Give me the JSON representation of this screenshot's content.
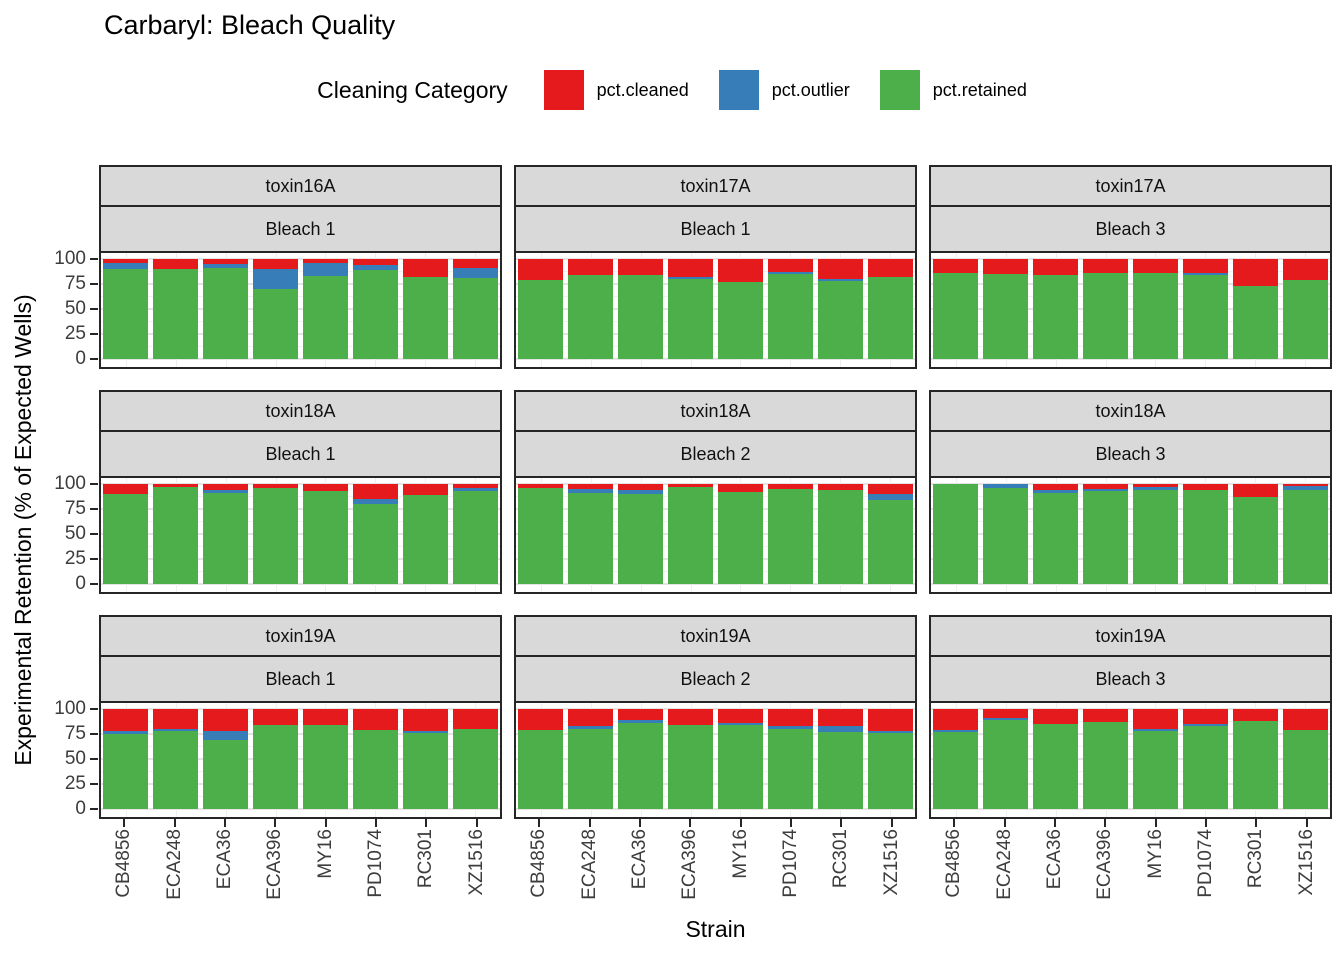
{
  "title": "Carbaryl: Bleach Quality",
  "legend": {
    "title": "Cleaning Category",
    "items": [
      {
        "label": "pct.cleaned",
        "color": "#E41A1C"
      },
      {
        "label": "pct.outlier",
        "color": "#377EB8"
      },
      {
        "label": "pct.retained",
        "color": "#4DAF4A"
      }
    ]
  },
  "chart_data": {
    "type": "bar",
    "stacked": true,
    "title": "Carbaryl: Bleach Quality",
    "xlabel": "Strain",
    "ylabel": "Experimental Retention (% of Expected Wells)",
    "categories": [
      "CB4856",
      "ECA248",
      "ECA36",
      "ECA396",
      "MY16",
      "PD1074",
      "RC301",
      "XZ1516"
    ],
    "ylim": [
      0,
      100
    ],
    "y_ticks_top_to_bottom": [
      100,
      75,
      50,
      25,
      0
    ],
    "y_minor_gridlines": [
      12.5,
      37.5,
      62.5,
      87.5
    ],
    "stack_order_bottom_to_top": [
      "pct.retained",
      "pct.outlier",
      "pct.cleaned"
    ],
    "colors": {
      "pct.cleaned": "#E41A1C",
      "pct.outlier": "#377EB8",
      "pct.retained": "#4DAF4A"
    },
    "legend_position": "top",
    "grid": true,
    "facet_layout": {
      "rows": 3,
      "cols": 3,
      "strip_levels": [
        "toxin",
        "bleach"
      ]
    },
    "facets": [
      {
        "row": 0,
        "col": 0,
        "toxin": "toxin16A",
        "bleach": "Bleach 1",
        "series": {
          "pct.retained": [
            90,
            90,
            91,
            70,
            83,
            89,
            82,
            81
          ],
          "pct.outlier": [
            6,
            0,
            4,
            20,
            13,
            5,
            0,
            10
          ],
          "pct.cleaned": [
            4,
            10,
            5,
            10,
            4,
            6,
            18,
            9
          ]
        }
      },
      {
        "row": 0,
        "col": 1,
        "toxin": "toxin17A",
        "bleach": "Bleach 1",
        "series": {
          "pct.retained": [
            79,
            84,
            84,
            80,
            77,
            85,
            78,
            82
          ],
          "pct.outlier": [
            0,
            0,
            0,
            2,
            0,
            2,
            2,
            0
          ],
          "pct.cleaned": [
            21,
            16,
            16,
            18,
            23,
            13,
            20,
            18
          ]
        }
      },
      {
        "row": 0,
        "col": 2,
        "toxin": "toxin17A",
        "bleach": "Bleach 3",
        "series": {
          "pct.retained": [
            86,
            85,
            84,
            86,
            86,
            84,
            73,
            79
          ],
          "pct.outlier": [
            0,
            0,
            0,
            0,
            0,
            2,
            0,
            0
          ],
          "pct.cleaned": [
            14,
            15,
            16,
            14,
            14,
            14,
            27,
            21
          ]
        }
      },
      {
        "row": 1,
        "col": 0,
        "toxin": "toxin18A",
        "bleach": "Bleach 1",
        "series": {
          "pct.retained": [
            90,
            97,
            91,
            96,
            93,
            80,
            89,
            93
          ],
          "pct.outlier": [
            0,
            0,
            3,
            0,
            0,
            5,
            0,
            3
          ],
          "pct.cleaned": [
            10,
            3,
            6,
            4,
            7,
            15,
            11,
            4
          ]
        }
      },
      {
        "row": 1,
        "col": 1,
        "toxin": "toxin18A",
        "bleach": "Bleach 2",
        "series": {
          "pct.retained": [
            96,
            91,
            90,
            97,
            92,
            95,
            94,
            84
          ],
          "pct.outlier": [
            0,
            4,
            4,
            0,
            0,
            0,
            0,
            6
          ],
          "pct.cleaned": [
            4,
            5,
            6,
            3,
            8,
            5,
            6,
            10
          ]
        }
      },
      {
        "row": 1,
        "col": 2,
        "toxin": "toxin18A",
        "bleach": "Bleach 3",
        "series": {
          "pct.retained": [
            100,
            96,
            91,
            93,
            94,
            94,
            87,
            94
          ],
          "pct.outlier": [
            0,
            4,
            3,
            2,
            3,
            0,
            0,
            4
          ],
          "pct.cleaned": [
            0,
            0,
            6,
            5,
            3,
            6,
            13,
            2
          ]
        }
      },
      {
        "row": 2,
        "col": 0,
        "toxin": "toxin19A",
        "bleach": "Bleach 1",
        "series": {
          "pct.retained": [
            75,
            78,
            69,
            84,
            84,
            79,
            76,
            80
          ],
          "pct.outlier": [
            3,
            2,
            9,
            0,
            0,
            0,
            2,
            0
          ],
          "pct.cleaned": [
            22,
            20,
            22,
            16,
            16,
            21,
            22,
            20
          ]
        }
      },
      {
        "row": 2,
        "col": 1,
        "toxin": "toxin19A",
        "bleach": "Bleach 2",
        "series": {
          "pct.retained": [
            79,
            80,
            86,
            84,
            84,
            80,
            77,
            76
          ],
          "pct.outlier": [
            0,
            3,
            3,
            0,
            2,
            3,
            6,
            2
          ],
          "pct.cleaned": [
            21,
            17,
            11,
            16,
            14,
            17,
            17,
            22
          ]
        }
      },
      {
        "row": 2,
        "col": 2,
        "toxin": "toxin19A",
        "bleach": "Bleach 3",
        "series": {
          "pct.retained": [
            77,
            89,
            85,
            87,
            78,
            83,
            88,
            79
          ],
          "pct.outlier": [
            2,
            2,
            0,
            0,
            2,
            2,
            0,
            0
          ],
          "pct.cleaned": [
            21,
            9,
            15,
            13,
            20,
            15,
            12,
            21
          ]
        }
      }
    ]
  }
}
